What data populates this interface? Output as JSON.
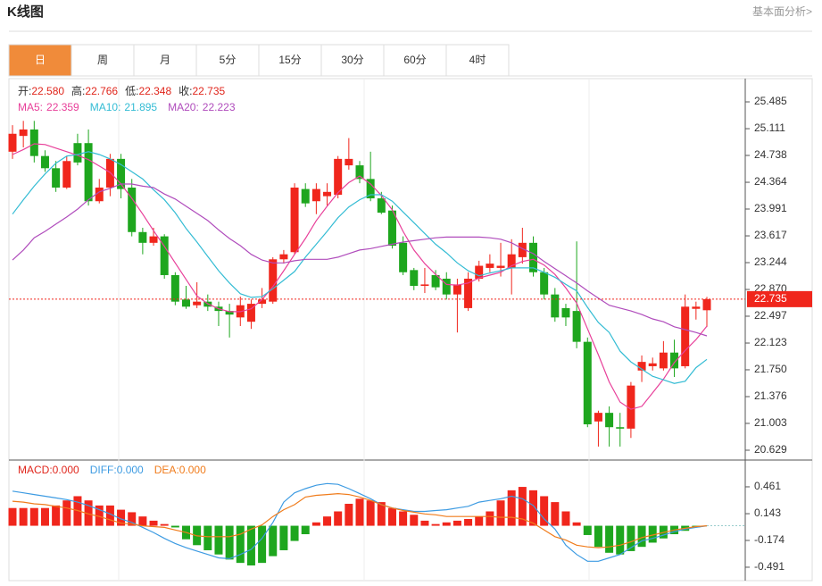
{
  "header": {
    "title": "K线图",
    "link": "基本面分析>"
  },
  "tabs": [
    "日",
    "周",
    "月",
    "5分",
    "15分",
    "30分",
    "60分",
    "4时"
  ],
  "chart_data": [
    {
      "type": "candlestick",
      "ohlc_labels": [
        "开:",
        "高:",
        "低:",
        "收:"
      ],
      "value_labels": [
        "22.580",
        "22.766",
        "22.348",
        "22.735"
      ],
      "up_color": "#f0261c",
      "down_color": "#1ea61e",
      "candles": [
        [
          24.79,
          25.16,
          24.69,
          25.04
        ],
        [
          25.01,
          25.22,
          24.85,
          25.1
        ],
        [
          25.1,
          25.22,
          24.64,
          24.73
        ],
        [
          24.73,
          24.81,
          24.51,
          24.56
        ],
        [
          24.56,
          24.66,
          24.23,
          24.29
        ],
        [
          24.29,
          24.73,
          24.27,
          24.66
        ],
        [
          24.91,
          25.04,
          24.6,
          24.64
        ],
        [
          24.91,
          25.1,
          24.04,
          24.1
        ],
        [
          24.1,
          24.41,
          24.07,
          24.29
        ],
        [
          24.29,
          24.76,
          24.17,
          24.69
        ],
        [
          24.69,
          24.76,
          24.14,
          24.27
        ],
        [
          24.29,
          24.41,
          23.61,
          23.67
        ],
        [
          23.67,
          23.73,
          23.36,
          23.52
        ],
        [
          23.52,
          23.73,
          23.48,
          23.61
        ],
        [
          23.61,
          23.64,
          23.02,
          23.07
        ],
        [
          23.07,
          23.11,
          22.65,
          22.7
        ],
        [
          22.73,
          22.92,
          22.6,
          22.63
        ],
        [
          22.65,
          22.97,
          22.61,
          22.7
        ],
        [
          22.7,
          22.8,
          22.57,
          22.63
        ],
        [
          22.63,
          22.7,
          22.36,
          22.57
        ],
        [
          22.57,
          22.67,
          22.2,
          22.52
        ],
        [
          22.48,
          22.77,
          22.36,
          22.65
        ],
        [
          22.42,
          22.73,
          22.32,
          22.67
        ],
        [
          22.67,
          22.89,
          22.61,
          22.73
        ],
        [
          22.7,
          23.32,
          22.67,
          23.29
        ],
        [
          23.29,
          23.42,
          23.23,
          23.36
        ],
        [
          23.39,
          24.35,
          23.36,
          24.29
        ],
        [
          24.27,
          24.35,
          24.02,
          24.07
        ],
        [
          24.1,
          24.35,
          23.92,
          24.27
        ],
        [
          24.17,
          24.35,
          24.04,
          24.23
        ],
        [
          24.19,
          24.73,
          24.14,
          24.69
        ],
        [
          24.6,
          24.98,
          24.54,
          24.69
        ],
        [
          24.6,
          24.66,
          24.35,
          24.41
        ],
        [
          24.41,
          24.79,
          24.1,
          24.14
        ],
        [
          24.14,
          24.23,
          23.92,
          23.94
        ],
        [
          23.97,
          24.04,
          23.44,
          23.48
        ],
        [
          23.52,
          23.61,
          23.07,
          23.11
        ],
        [
          23.14,
          23.17,
          22.86,
          22.92
        ],
        [
          22.92,
          23.17,
          22.82,
          22.94
        ],
        [
          23.07,
          23.14,
          22.86,
          22.9
        ],
        [
          23.02,
          23.11,
          22.73,
          22.8
        ],
        [
          22.8,
          23.02,
          22.27,
          22.94
        ],
        [
          22.61,
          23.11,
          22.57,
          23.02
        ],
        [
          23.02,
          23.27,
          22.98,
          23.2
        ],
        [
          23.17,
          23.36,
          23.11,
          23.23
        ],
        [
          23.17,
          23.52,
          23.05,
          23.2
        ],
        [
          23.17,
          23.57,
          22.8,
          23.36
        ],
        [
          23.32,
          23.73,
          23.23,
          23.52
        ],
        [
          23.52,
          23.61,
          23.05,
          23.11
        ],
        [
          23.11,
          23.17,
          22.73,
          22.8
        ],
        [
          22.8,
          22.89,
          22.42,
          22.48
        ],
        [
          22.61,
          22.67,
          22.36,
          22.48
        ],
        [
          22.57,
          23.54,
          22.05,
          22.14
        ],
        [
          22.14,
          22.2,
          20.95,
          20.99
        ],
        [
          21.03,
          21.18,
          20.68,
          21.15
        ],
        [
          21.15,
          21.24,
          20.68,
          20.95
        ],
        [
          20.95,
          21.15,
          20.68,
          20.93
        ],
        [
          20.93,
          21.58,
          20.8,
          21.53
        ],
        [
          21.74,
          21.95,
          21.58,
          21.86
        ],
        [
          21.8,
          21.92,
          21.74,
          21.84
        ],
        [
          21.77,
          22.15,
          21.74,
          21.99
        ],
        [
          21.99,
          22.17,
          21.65,
          21.77
        ],
        [
          21.8,
          22.8,
          21.77,
          22.63
        ],
        [
          22.6,
          22.7,
          22.45,
          22.63
        ],
        [
          22.58,
          22.766,
          22.348,
          22.735
        ]
      ],
      "series": [
        {
          "name": "MA5:",
          "color": "#e8409a",
          "values": [
            24.75,
            24.82,
            24.9,
            24.89,
            24.84,
            24.79,
            24.74,
            24.68,
            24.59,
            24.5,
            24.34,
            24.14,
            23.92,
            23.69,
            23.47,
            23.24,
            23.01,
            22.78,
            22.67,
            22.6,
            22.56,
            22.56,
            22.6,
            22.73,
            22.91,
            23.13,
            23.36,
            23.58,
            23.83,
            24.03,
            24.22,
            24.36,
            24.45,
            24.34,
            24.18,
            23.98,
            23.68,
            23.42,
            23.23,
            23.08,
            22.94,
            22.93,
            22.96,
            23.03,
            23.07,
            23.11,
            23.2,
            23.26,
            23.29,
            23.21,
            23.08,
            22.89,
            22.68,
            22.32,
            21.96,
            21.58,
            21.3,
            21.2,
            21.24,
            21.43,
            21.62,
            21.85,
            22.02,
            22.17,
            22.359
          ]
        },
        {
          "name": "MA10:",
          "color": "#34bcd4",
          "values": [
            23.92,
            24.12,
            24.31,
            24.48,
            24.63,
            24.73,
            24.75,
            24.79,
            24.75,
            24.69,
            24.61,
            24.51,
            24.41,
            24.26,
            24.12,
            23.94,
            23.72,
            23.53,
            23.33,
            23.13,
            22.96,
            22.81,
            22.76,
            22.77,
            22.88,
            23.0,
            23.12,
            23.32,
            23.5,
            23.68,
            23.87,
            24.02,
            24.12,
            24.19,
            24.19,
            24.1,
            23.95,
            23.8,
            23.65,
            23.5,
            23.38,
            23.24,
            23.13,
            23.06,
            23.1,
            23.13,
            23.17,
            23.17,
            23.17,
            23.11,
            23.04,
            22.94,
            22.85,
            22.62,
            22.41,
            22.27,
            22.01,
            21.86,
            21.76,
            21.66,
            21.61,
            21.56,
            21.59,
            21.78,
            21.895
          ]
        },
        {
          "name": "MA20:",
          "color": "#b04cbc",
          "values": [
            23.28,
            23.42,
            23.59,
            23.68,
            23.78,
            23.88,
            23.99,
            24.12,
            24.23,
            24.28,
            24.34,
            24.34,
            24.31,
            24.29,
            24.2,
            24.13,
            24.03,
            23.93,
            23.83,
            23.7,
            23.58,
            23.48,
            23.36,
            23.28,
            23.24,
            23.24,
            23.27,
            23.29,
            23.29,
            23.29,
            23.32,
            23.37,
            23.42,
            23.44,
            23.47,
            23.5,
            23.53,
            23.55,
            23.57,
            23.59,
            23.6,
            23.6,
            23.6,
            23.6,
            23.59,
            23.57,
            23.52,
            23.44,
            23.37,
            23.26,
            23.16,
            23.06,
            22.96,
            22.85,
            22.75,
            22.65,
            22.61,
            22.57,
            22.52,
            22.46,
            22.42,
            22.35,
            22.31,
            22.27,
            22.223
          ]
        }
      ],
      "ylim": [
        20.492,
        25.809
      ],
      "yticks": [
        25.485,
        25.111,
        24.738,
        24.364,
        23.991,
        23.617,
        23.244,
        {
          "value": 22.87,
          "label": "22.870"
        },
        22.497,
        22.123,
        {
          "value": 21.75,
          "label": "21.750"
        },
        21.376,
        21.003,
        20.629
      ]
    },
    {
      "type": "macd",
      "up_color": "#f0261c",
      "down_color": "#1ea61e",
      "bars": {
        "name": "MACD:",
        "color": "#e0261c",
        "legend_value": "0.000",
        "values": [
          0.21,
          0.21,
          0.21,
          0.21,
          0.24,
          0.3,
          0.35,
          0.3,
          0.24,
          0.24,
          0.19,
          0.16,
          0.11,
          0.06,
          0.02,
          -0.02,
          -0.16,
          -0.23,
          -0.29,
          -0.34,
          -0.4,
          -0.44,
          -0.47,
          -0.44,
          -0.36,
          -0.29,
          -0.18,
          -0.1,
          0.04,
          0.11,
          0.17,
          0.26,
          0.32,
          0.3,
          0.28,
          0.21,
          0.17,
          0.13,
          0.06,
          0.02,
          0.04,
          0.06,
          0.08,
          0.11,
          0.17,
          0.3,
          0.42,
          0.46,
          0.42,
          0.35,
          0.28,
          0.17,
          0.04,
          -0.11,
          -0.25,
          -0.32,
          -0.34,
          -0.3,
          -0.25,
          -0.2,
          -0.15,
          -0.1,
          -0.06,
          -0.02,
          0
        ]
      },
      "series": [
        {
          "name": "DIFF:",
          "color": "#3d9be2",
          "legend_value": "0.000",
          "values": [
            0.41,
            0.39,
            0.37,
            0.35,
            0.33,
            0.31,
            0.28,
            0.24,
            0.19,
            0.14,
            0.08,
            0.04,
            -0.02,
            -0.08,
            -0.15,
            -0.21,
            -0.26,
            -0.3,
            -0.34,
            -0.38,
            -0.39,
            -0.34,
            -0.28,
            -0.15,
            0.04,
            0.28,
            0.39,
            0.44,
            0.48,
            0.5,
            0.49,
            0.44,
            0.38,
            0.32,
            0.25,
            0.21,
            0.19,
            0.17,
            0.17,
            0.18,
            0.19,
            0.21,
            0.23,
            0.28,
            0.3,
            0.32,
            0.35,
            0.32,
            0.24,
            0.08,
            -0.04,
            -0.23,
            -0.34,
            -0.42,
            -0.42,
            -0.38,
            -0.34,
            -0.26,
            -0.18,
            -0.15,
            -0.11,
            -0.07,
            -0.04,
            -0.02,
            0
          ]
        },
        {
          "name": "DEA:",
          "color": "#f07c1c",
          "legend_value": "0.000",
          "values": [
            0.29,
            0.28,
            0.26,
            0.25,
            0.23,
            0.21,
            0.18,
            0.14,
            0.11,
            0.07,
            0.03,
            0.02,
            0,
            -0.01,
            -0.02,
            -0.05,
            -0.08,
            -0.12,
            -0.13,
            -0.13,
            -0.13,
            -0.1,
            -0.04,
            0.01,
            0.11,
            0.19,
            0.25,
            0.34,
            0.36,
            0.37,
            0.38,
            0.37,
            0.34,
            0.3,
            0.25,
            0.21,
            0.18,
            0.16,
            0.14,
            0.13,
            0.11,
            0.11,
            0.11,
            0.11,
            0.11,
            0.1,
            0.1,
            0.08,
            0.03,
            -0.05,
            -0.13,
            -0.17,
            -0.23,
            -0.25,
            -0.26,
            -0.25,
            -0.23,
            -0.19,
            -0.14,
            -0.11,
            -0.08,
            -0.05,
            -0.03,
            -0.01,
            0
          ]
        }
      ],
      "ylim": [
        -0.65,
        0.757
      ],
      "yticks": [
        0.461,
        0.143,
        -0.174,
        -0.491
      ]
    }
  ]
}
